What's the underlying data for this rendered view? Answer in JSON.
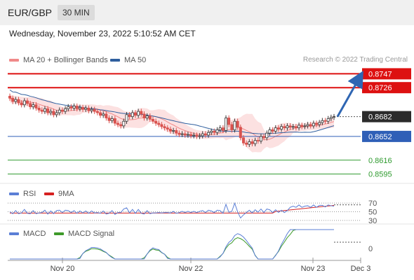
{
  "header": {
    "pair": "EUR/GBP",
    "timeframe": "30 MIN"
  },
  "datetime": "Wednesday, November 23, 2022 5:10:52 AM CET",
  "legend_main": [
    {
      "label": "MA 20 + Bollinger Bands",
      "color": "#f08a8a"
    },
    {
      "label": "MA 50",
      "color": "#2f5f9e"
    }
  ],
  "credit": "Research © 2022 Trading Central",
  "legend_rsi": [
    {
      "label": "RSI",
      "color": "#5b7fd6"
    },
    {
      "label": "9MA",
      "color": "#d62020"
    }
  ],
  "legend_macd": [
    {
      "label": "MACD",
      "color": "#5b7fd6"
    },
    {
      "label": "MACD Signal",
      "color": "#3e9a2a"
    }
  ],
  "colors": {
    "up": "#3a3a3a",
    "down": "#d9534f",
    "resistance": "#dd1111",
    "pivot": "#2f5fb7",
    "support": "#2e9a2e",
    "current": "#2b2b2b",
    "arrow": "#2f66b3"
  },
  "chart_data": {
    "type": "candlestick",
    "x_ticks": [
      "Nov 20",
      "Nov 22",
      "Nov 23",
      "Dec 3"
    ],
    "ylim": [
      0.8585,
      0.8757
    ],
    "price_levels": [
      {
        "label": "0.8747",
        "value": 0.8747,
        "kind": "resistance"
      },
      {
        "label": "0.8726",
        "value": 0.8726,
        "kind": "resistance"
      },
      {
        "label": "0.8682",
        "value": 0.8682,
        "kind": "current"
      },
      {
        "label": "0.8652",
        "value": 0.8652,
        "kind": "pivot"
      },
      {
        "label": "0.8616",
        "value": 0.8616,
        "kind": "support"
      },
      {
        "label": "0.8595",
        "value": 0.8595,
        "kind": "support"
      }
    ],
    "closes": [
      0.871,
      0.8705,
      0.8708,
      0.8703,
      0.87,
      0.8706,
      0.8702,
      0.8697,
      0.87,
      0.8695,
      0.8692,
      0.869,
      0.8694,
      0.8688,
      0.869,
      0.8685,
      0.8688,
      0.8692,
      0.869,
      0.8694,
      0.8697,
      0.8695,
      0.8698,
      0.8694,
      0.8696,
      0.8693,
      0.8695,
      0.8691,
      0.8693,
      0.869,
      0.8688,
      0.8684,
      0.8686,
      0.868,
      0.8676,
      0.8679,
      0.8672,
      0.867,
      0.8668,
      0.8675,
      0.8685,
      0.8682,
      0.8688,
      0.8684,
      0.869,
      0.8686,
      0.868,
      0.8683,
      0.8678,
      0.8675,
      0.8672,
      0.867,
      0.8667,
      0.8665,
      0.8663,
      0.866,
      0.8661,
      0.8657,
      0.8655,
      0.8656,
      0.8654,
      0.8655,
      0.8653,
      0.8654,
      0.8652,
      0.8653,
      0.8656,
      0.8654,
      0.8658,
      0.866,
      0.8658,
      0.8662,
      0.8665,
      0.8661,
      0.868,
      0.867,
      0.8662,
      0.8675,
      0.8666,
      0.865,
      0.8642,
      0.864,
      0.8644,
      0.8641,
      0.8646,
      0.8645,
      0.8652,
      0.865,
      0.8657,
      0.8662,
      0.866,
      0.8665,
      0.8663,
      0.8667,
      0.8665,
      0.8668,
      0.8666,
      0.8667,
      0.8665,
      0.8669,
      0.8667,
      0.8668,
      0.867,
      0.8668,
      0.8672,
      0.867,
      0.8673,
      0.8676,
      0.8675,
      0.8679,
      0.8681,
      0.8682
    ],
    "rsi": {
      "ticks": [
        70,
        50,
        30
      ]
    },
    "macd": {
      "ticks": [
        0
      ]
    }
  }
}
